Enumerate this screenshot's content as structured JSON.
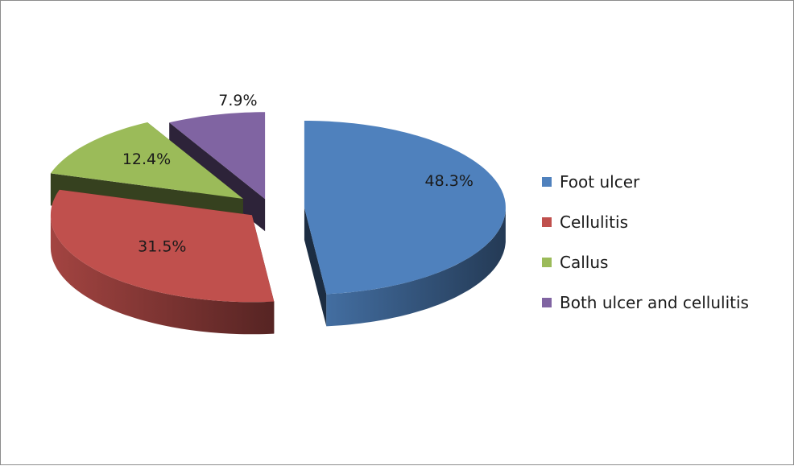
{
  "chart_data": {
    "type": "pie",
    "style": "3d-exploded",
    "legend_position": "right",
    "slices": [
      {
        "label": "Foot ulcer",
        "value": 48.3,
        "data_label": "48.3%",
        "color": "#4f81bd"
      },
      {
        "label": "Cellulitis",
        "value": 31.5,
        "data_label": "31.5%",
        "color": "#c0504d"
      },
      {
        "label": "Callus",
        "value": 12.4,
        "data_label": "12.4%",
        "color": "#9bbb59"
      },
      {
        "label": "Both ulcer and cellulitis",
        "value": 7.9,
        "data_label": "7.9%",
        "color": "#8064a2"
      }
    ]
  }
}
